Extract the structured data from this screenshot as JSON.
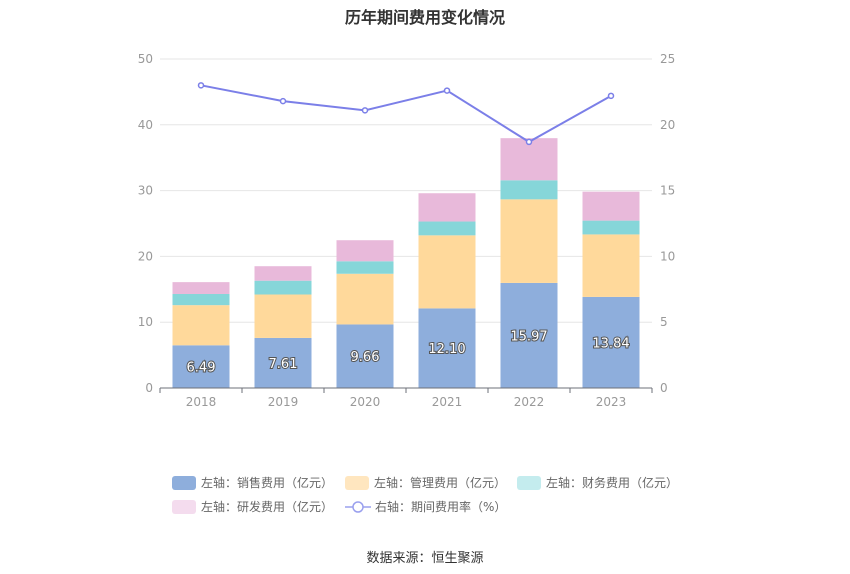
{
  "title": "历年期间费用变化情况",
  "source": "数据来源：恒生聚源",
  "chart_data": {
    "type": "bar",
    "stacked": true,
    "title": "历年期间费用变化情况",
    "categories": [
      "2018",
      "2019",
      "2020",
      "2021",
      "2022",
      "2023"
    ],
    "left_axis": {
      "min": 0,
      "max": 50,
      "ticks": [
        0,
        10,
        20,
        30,
        40,
        50
      ]
    },
    "right_axis": {
      "min": 0,
      "max": 25,
      "ticks": [
        0,
        5,
        10,
        15,
        20,
        25
      ]
    },
    "grid": true,
    "legend_position": "bottom",
    "series": [
      {
        "name": "左轴：销售费用（亿元）",
        "axis": "left",
        "kind": "bar",
        "color": "#8eaedc",
        "values": [
          6.49,
          7.61,
          9.66,
          12.1,
          15.97,
          13.84
        ],
        "labels": [
          "6.49",
          "7.61",
          "9.66",
          "12.10",
          "15.97",
          "13.84"
        ]
      },
      {
        "name": "左轴：管理费用（亿元）",
        "axis": "left",
        "kind": "bar",
        "color": "#ffd99b",
        "values": [
          6.1,
          6.6,
          7.7,
          11.1,
          12.7,
          9.5
        ]
      },
      {
        "name": "左轴：财务费用（亿元）",
        "axis": "left",
        "kind": "bar",
        "color": "#86d6d9",
        "values": [
          1.7,
          2.1,
          1.9,
          2.1,
          2.9,
          2.1
        ]
      },
      {
        "name": "左轴：研发费用（亿元）",
        "axis": "left",
        "kind": "bar",
        "color": "#e8b9da",
        "values": [
          1.8,
          2.2,
          3.2,
          4.3,
          6.4,
          4.4
        ]
      },
      {
        "name": "右轴：期间费用率（%）",
        "axis": "right",
        "kind": "line",
        "color": "#7b7fe8",
        "values": [
          23.0,
          21.8,
          21.1,
          22.6,
          18.7,
          22.2
        ]
      }
    ]
  }
}
